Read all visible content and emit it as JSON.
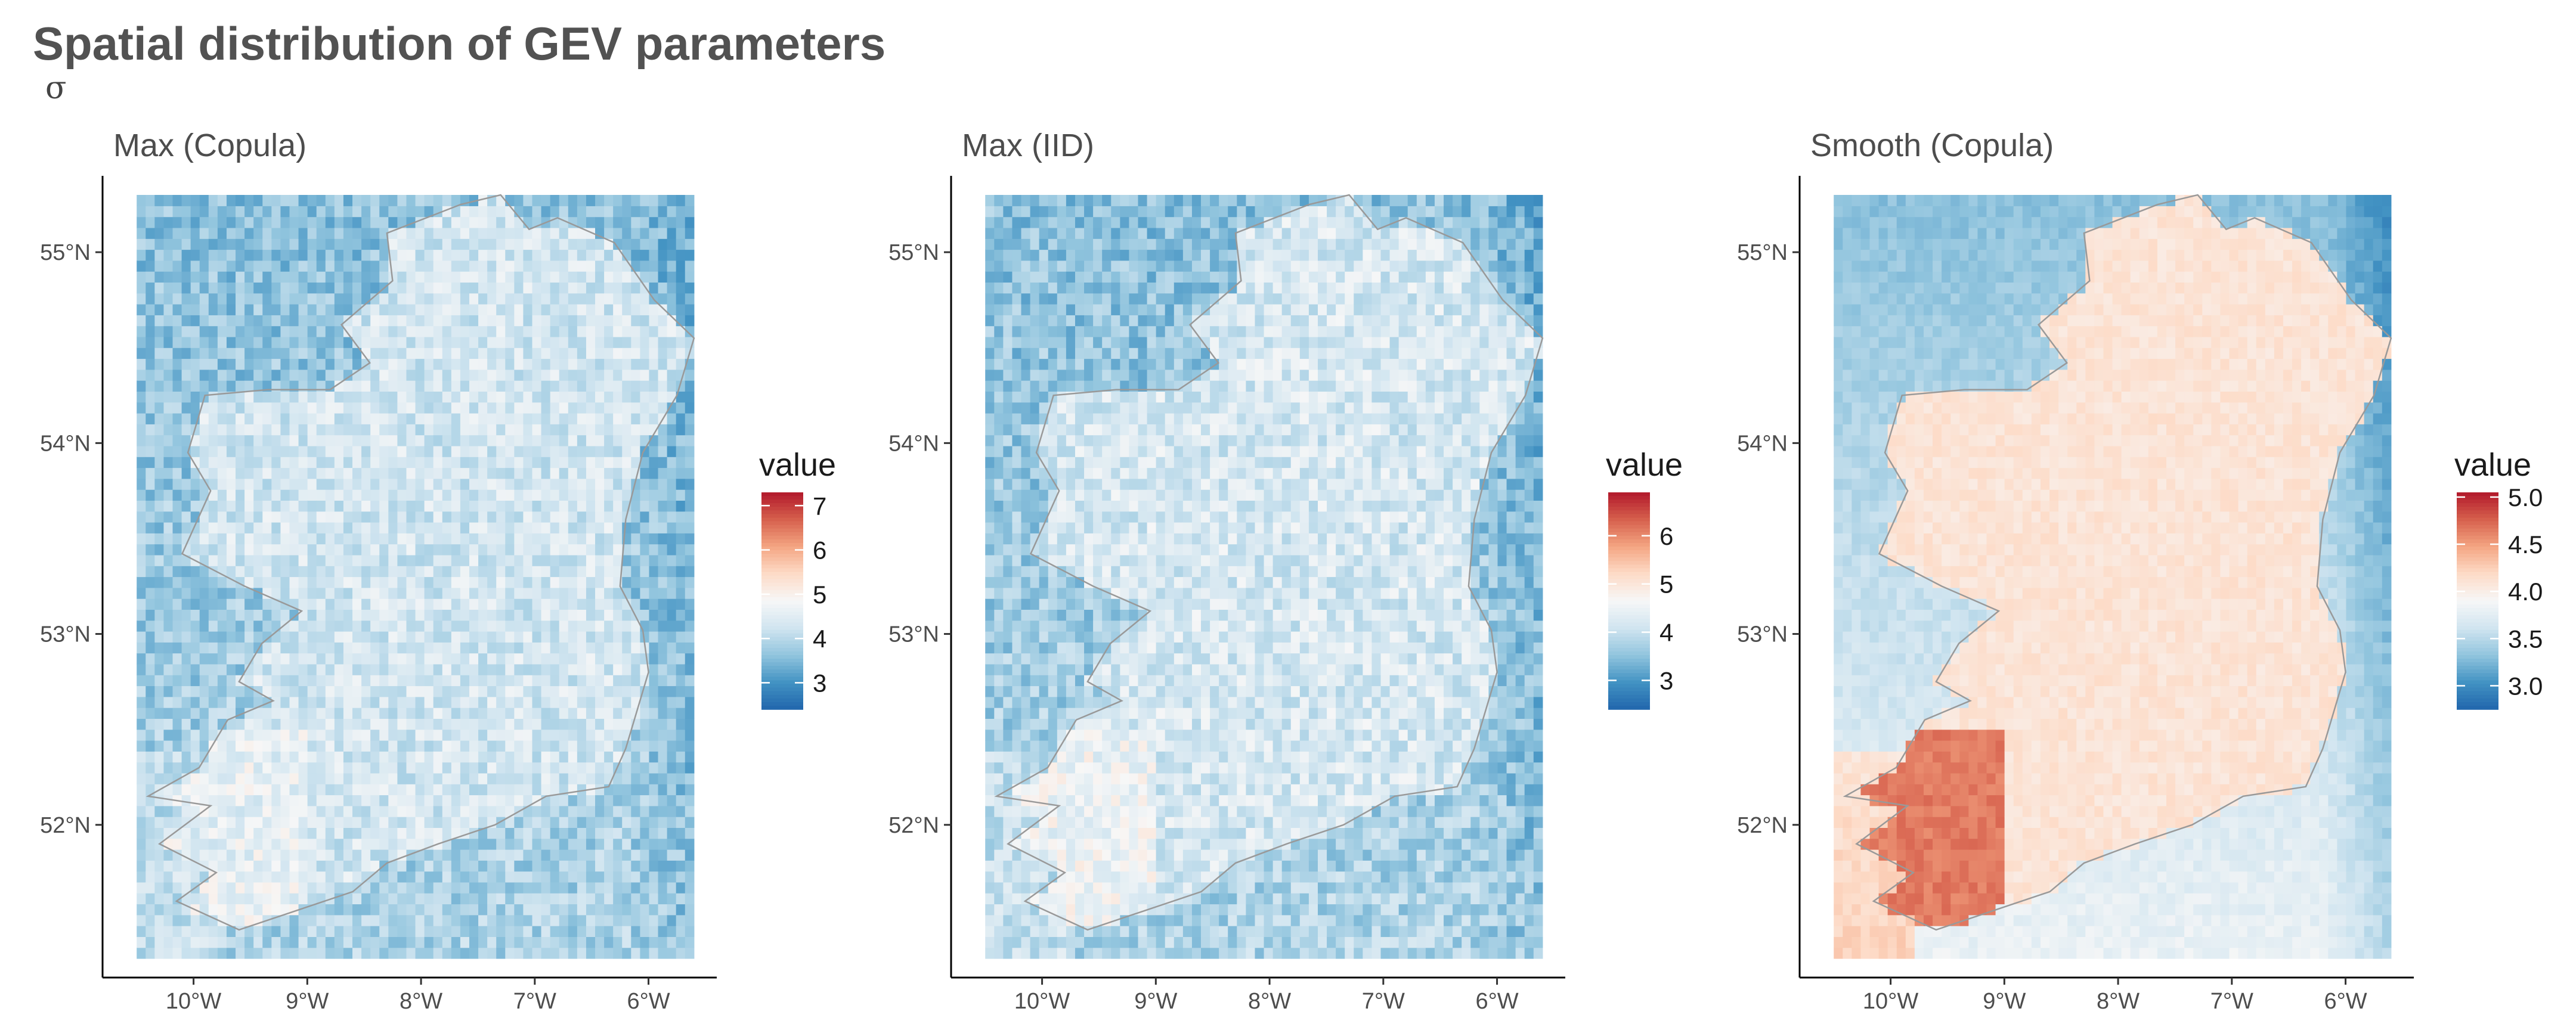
{
  "chart_data": {
    "type": "heatmap",
    "title": "Spatial distribution of GEV parameters",
    "subtitle": "σ",
    "panels": [
      {
        "name": "Max (Copula)",
        "x_ticks": [
          -10,
          -9,
          -8,
          -7,
          -6
        ],
        "x_tick_labels": [
          "10°W",
          "9°W",
          "8°W",
          "7°W",
          "6°W"
        ],
        "y_ticks": [
          52,
          53,
          54,
          55
        ],
        "y_tick_labels": [
          "52°N",
          "53°N",
          "54°N",
          "55°N"
        ],
        "xlim": [
          -10.8,
          -5.4
        ],
        "ylim": [
          51.2,
          55.4
        ],
        "grid_lon_range": [
          -10.5,
          -5.6
        ],
        "grid_lat_range": [
          51.3,
          55.3
        ],
        "legend": {
          "title": "value",
          "min": 2.4,
          "max": 7.3,
          "breaks": [
            3,
            4,
            5,
            6,
            7
          ],
          "break_labels": [
            "3",
            "4",
            "5",
            "6",
            "7"
          ]
        },
        "field": {
          "sea_north": 3.6,
          "sea_south": 3.9,
          "land": 4.3,
          "noise": 0.45,
          "west_coast_high": 0.3,
          "east_low": 0.5
        }
      },
      {
        "name": "Max (IID)",
        "x_ticks": [
          -10,
          -9,
          -8,
          -7,
          -6
        ],
        "x_tick_labels": [
          "10°W",
          "9°W",
          "8°W",
          "7°W",
          "6°W"
        ],
        "y_ticks": [
          52,
          53,
          54,
          55
        ],
        "y_tick_labels": [
          "52°N",
          "53°N",
          "54°N",
          "55°N"
        ],
        "xlim": [
          -10.8,
          -5.4
        ],
        "ylim": [
          51.2,
          55.4
        ],
        "grid_lon_range": [
          -10.5,
          -5.6
        ],
        "grid_lat_range": [
          51.3,
          55.3
        ],
        "legend": {
          "title": "value",
          "min": 2.4,
          "max": 6.9,
          "breaks": [
            3,
            4,
            5,
            6
          ],
          "break_labels": [
            "3",
            "4",
            "5",
            "6"
          ]
        },
        "field": {
          "sea_north": 3.5,
          "sea_south": 3.8,
          "land": 4.2,
          "noise": 0.42,
          "west_coast_high": 0.3,
          "east_low": 0.5
        }
      },
      {
        "name": "Smooth (Copula)",
        "x_ticks": [
          -10,
          -9,
          -8,
          -7,
          -6
        ],
        "x_tick_labels": [
          "10°W",
          "9°W",
          "8°W",
          "7°W",
          "6°W"
        ],
        "y_ticks": [
          52,
          53,
          54,
          55
        ],
        "y_tick_labels": [
          "52°N",
          "53°N",
          "54°N",
          "55°N"
        ],
        "xlim": [
          -10.8,
          -5.4
        ],
        "ylim": [
          51.2,
          55.4
        ],
        "grid_lon_range": [
          -10.5,
          -5.6
        ],
        "grid_lat_range": [
          51.3,
          55.3
        ],
        "legend": {
          "title": "value",
          "min": 2.75,
          "max": 5.05,
          "breaks": [
            3.0,
            3.5,
            4.0,
            4.5,
            5.0
          ],
          "break_labels": [
            "3.0",
            "3.5",
            "4.0",
            "4.5",
            "5.0"
          ]
        },
        "field": {
          "sea_north": 3.3,
          "sea_south": 3.8,
          "land": 4.1,
          "noise": 0.08,
          "west_coast_high": 0.55,
          "east_low": 0.55
        }
      }
    ],
    "colormap": [
      "#2166ac",
      "#4393c3",
      "#92c5de",
      "#d1e5f0",
      "#f7f7f7",
      "#fddbc7",
      "#f4a582",
      "#d6604d",
      "#b2182b"
    ],
    "outline_color": "#999999"
  }
}
